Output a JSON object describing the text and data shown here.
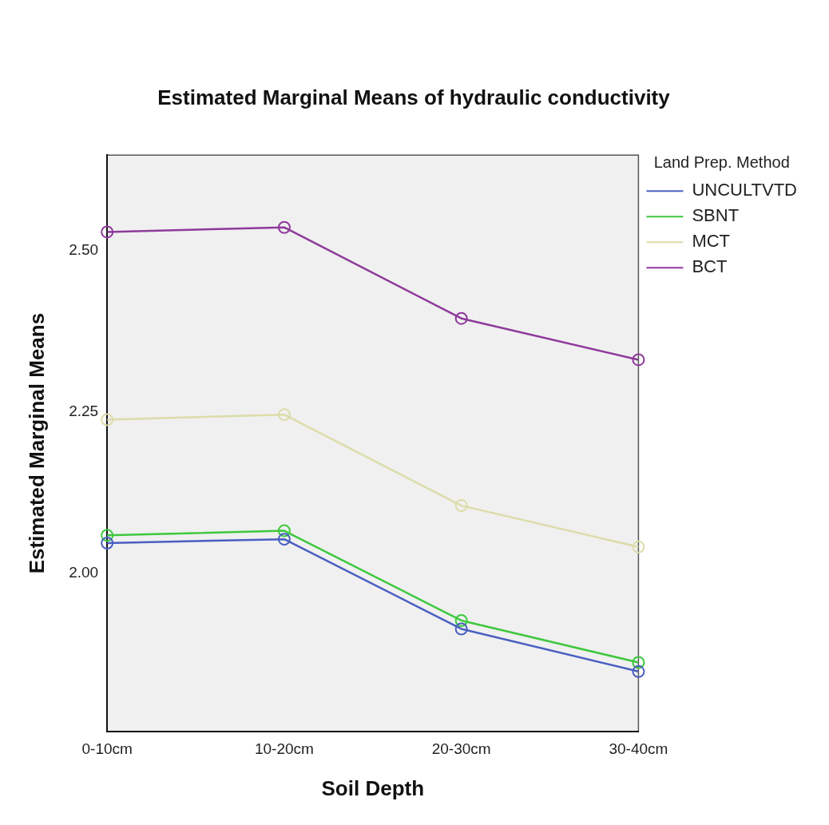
{
  "chart_data": {
    "type": "line",
    "title": "Estimated Marginal Means of hydraulic conductivity",
    "xlabel": "Soil Depth",
    "ylabel": "Estimated Marginal Means",
    "legend_title": "Land Prep. Method",
    "legend": "top right",
    "marker": "circle",
    "line_style": "solid",
    "grid": false,
    "categories": [
      "0-10cm",
      "10-20cm",
      "20-30cm",
      "30-40cm"
    ],
    "ylim": [
      1.755,
      2.648
    ],
    "yticks": [
      {
        "value": 2,
        "label": "2.00"
      },
      {
        "value": 2.25,
        "label": "2.25"
      },
      {
        "value": 2.5,
        "label": "2.50"
      }
    ],
    "series": [
      {
        "name": "UNCULTVTD",
        "color": "#4a5fc1",
        "values": [
          2.047,
          2.053,
          1.914,
          1.848
        ]
      },
      {
        "name": "SBNT",
        "color": "#3ec83e",
        "values": [
          2.059,
          2.066,
          1.927,
          1.862
        ]
      },
      {
        "name": "MCT",
        "color": "#dcdcaa",
        "values": [
          2.238,
          2.246,
          2.105,
          2.041
        ]
      },
      {
        "name": "BCT",
        "color": "#8e3a9a",
        "values": [
          2.529,
          2.536,
          2.395,
          2.331
        ]
      }
    ]
  }
}
